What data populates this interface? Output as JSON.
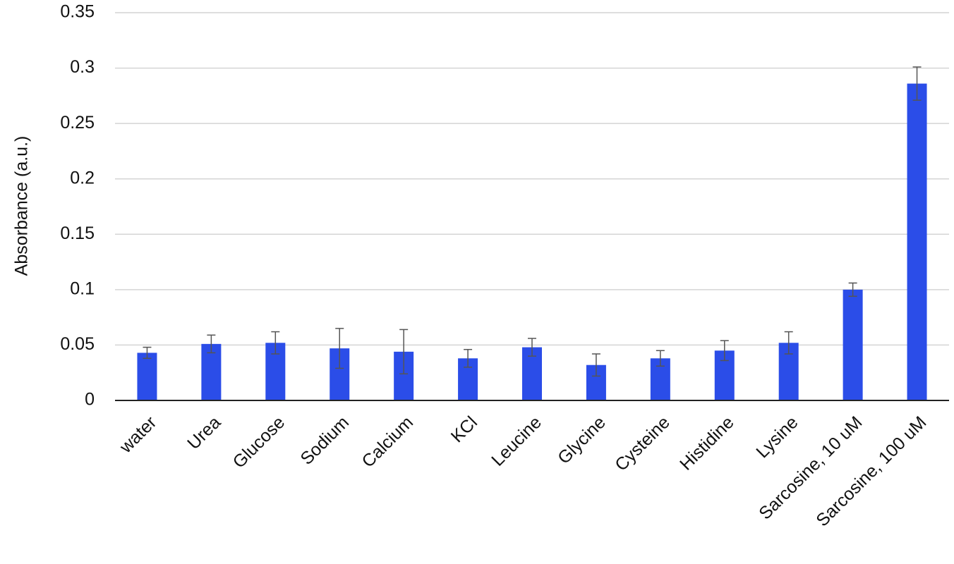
{
  "chart_data": {
    "type": "bar",
    "y_label": "Absorbance (a.u.)",
    "categories": [
      "water",
      "Urea",
      "Glucose",
      "Sodium",
      "Calcium",
      "KCl",
      "Leucine",
      "Glycine",
      "Cysteine",
      "Histidine",
      "Lysine",
      "Sarcosine, 10 uM",
      "Sarcosine, 100 uM"
    ],
    "values": [
      0.043,
      0.051,
      0.052,
      0.047,
      0.044,
      0.038,
      0.048,
      0.032,
      0.038,
      0.045,
      0.052,
      0.1,
      0.286
    ],
    "errors": [
      0.005,
      0.008,
      0.01,
      0.018,
      0.02,
      0.008,
      0.008,
      0.01,
      0.007,
      0.009,
      0.01,
      0.006,
      0.015
    ],
    "color": "#2b4de8",
    "error_color": "#555555",
    "ylim": [
      0,
      0.35
    ],
    "yticks": [
      0,
      0.05,
      0.1,
      0.15,
      0.2,
      0.25,
      0.3,
      0.35
    ],
    "grid": true
  }
}
